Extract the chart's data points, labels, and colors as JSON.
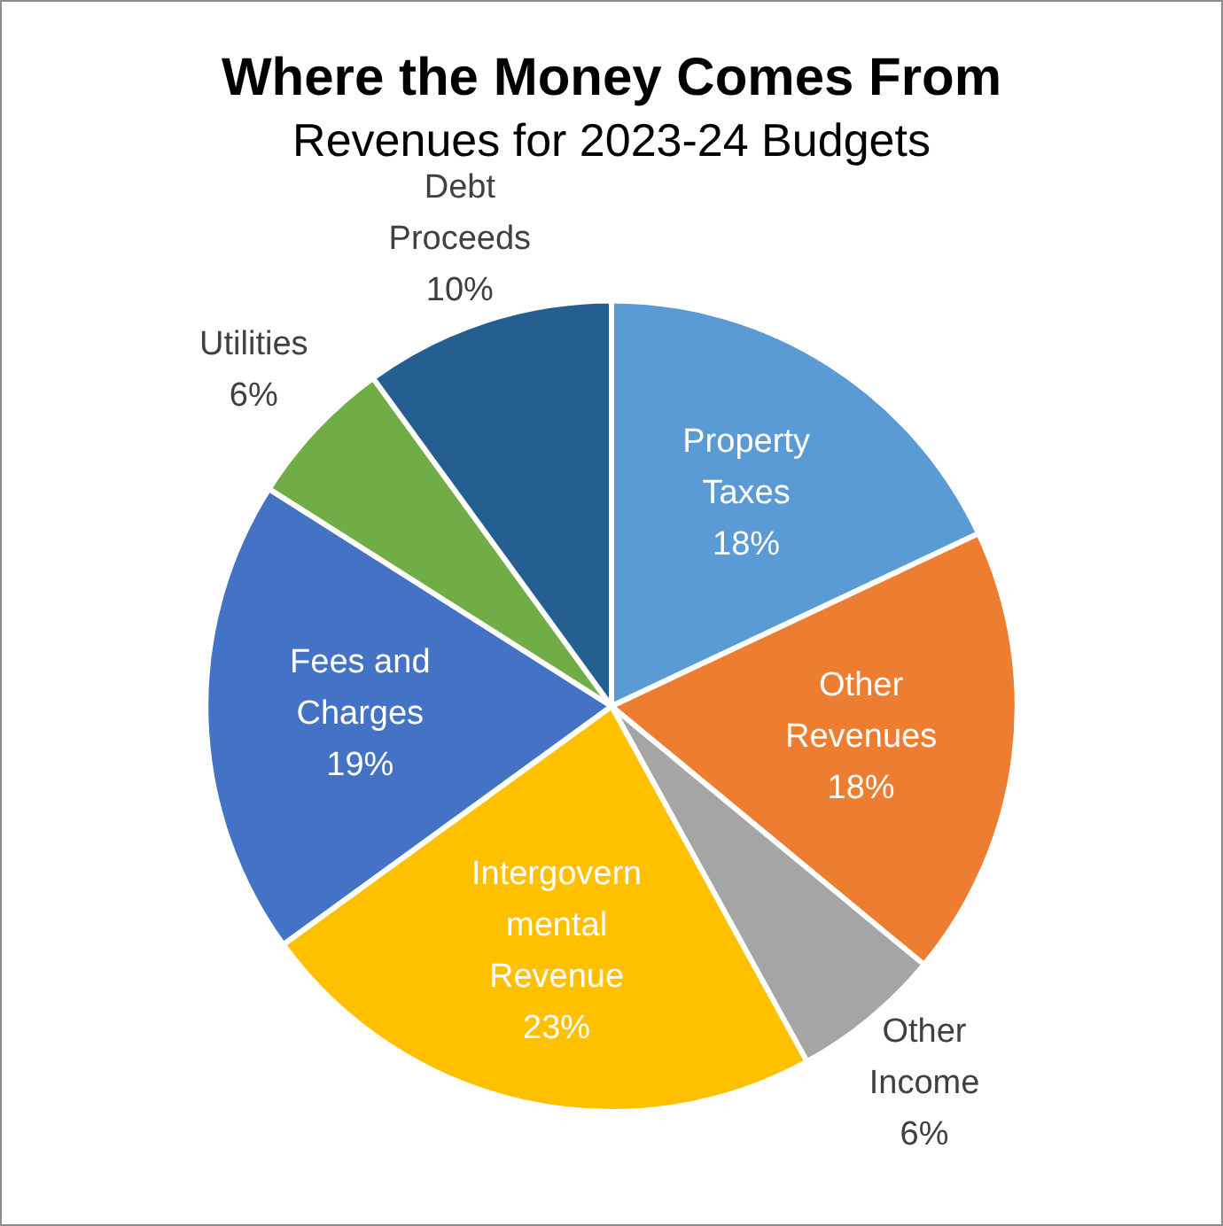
{
  "chart_data": {
    "type": "pie",
    "title": "Where the Money Comes From",
    "subtitle": "Revenues for 2023-24 Budgets",
    "categories": [
      "Property Taxes",
      "Other Revenues",
      "Other Income",
      "Intergovernmental Revenue",
      "Fees and Charges",
      "Utilities",
      "Debt Proceeds"
    ],
    "values": [
      18,
      18,
      6,
      23,
      19,
      6,
      10
    ],
    "colors": [
      "#5b9bd5",
      "#ed7d31",
      "#a5a5a5",
      "#ffc000",
      "#4472c4",
      "#70ad47",
      "#255e91"
    ],
    "value_labels": [
      "18%",
      "18%",
      "6%",
      "23%",
      "19%",
      "6%",
      "10%"
    ],
    "legend": false
  }
}
